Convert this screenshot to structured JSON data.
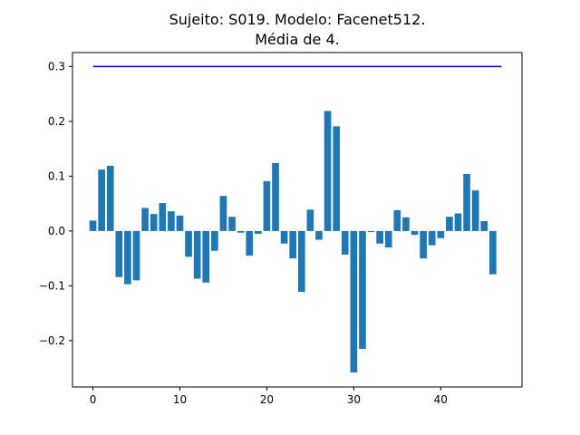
{
  "chart_data": {
    "type": "bar",
    "title_lines": [
      "Sujeito: S019. Modelo: Facenet512.",
      "Média de 4."
    ],
    "xlabel": "",
    "ylabel": "",
    "xlim": [
      -2.35,
      49.35
    ],
    "ylim": [
      -0.2845,
      0.3255
    ],
    "x_ticks": [
      0,
      10,
      20,
      30,
      40
    ],
    "x_tick_labels": [
      "0",
      "10",
      "20",
      "30",
      "40"
    ],
    "y_ticks": [
      -0.2,
      -0.1,
      0.0,
      0.1,
      0.2,
      0.3
    ],
    "y_tick_labels": [
      "−0.2",
      "−0.1",
      "0.0",
      "0.1",
      "0.2",
      "0.3"
    ],
    "bar_color": "#1f77b4",
    "bar_width": 0.8,
    "values": [
      0.019,
      0.112,
      0.119,
      -0.084,
      -0.097,
      -0.09,
      0.042,
      0.031,
      0.051,
      0.036,
      0.028,
      -0.047,
      -0.087,
      -0.094,
      -0.036,
      0.064,
      0.026,
      -0.003,
      -0.045,
      -0.005,
      0.091,
      0.124,
      -0.023,
      -0.05,
      -0.111,
      0.039,
      -0.016,
      0.219,
      0.191,
      -0.043,
      -0.258,
      -0.215,
      -0.002,
      -0.023,
      -0.03,
      0.038,
      0.025,
      -0.007,
      -0.05,
      -0.026,
      -0.013,
      0.026,
      0.032,
      0.104,
      0.074,
      0.018,
      -0.079
    ],
    "threshold_line": {
      "y": 0.3,
      "x_start": 0,
      "x_end": 47,
      "color": "#0000cc"
    }
  }
}
